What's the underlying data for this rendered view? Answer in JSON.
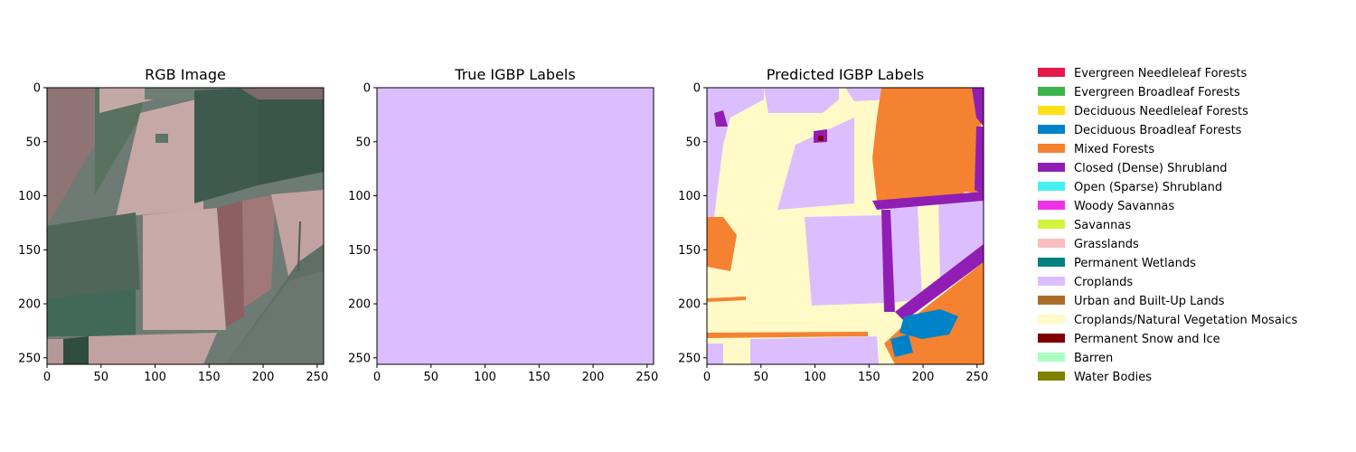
{
  "chart_data": {
    "type": "heatmap",
    "panels": [
      {
        "key": "rgb",
        "title": "RGB Image"
      },
      {
        "key": "true",
        "title": "True IGBP Labels"
      },
      {
        "key": "pred",
        "title": "Predicted IGBP Labels"
      }
    ],
    "x_ticks": [
      "0",
      "50",
      "100",
      "150",
      "200",
      "250"
    ],
    "y_ticks": [
      "0",
      "50",
      "100",
      "150",
      "200",
      "250"
    ],
    "x_range": [
      0,
      256
    ],
    "y_range": [
      0,
      256
    ],
    "true_label_uniform_class": "Croplands",
    "legend": {
      "placement": "right",
      "entries": [
        {
          "label": "Evergreen Needleleaf Forests",
          "color": "#e6194b"
        },
        {
          "label": "Evergreen Broadleaf Forests",
          "color": "#3cb44b"
        },
        {
          "label": "Deciduous Needleleaf Forests",
          "color": "#ffe119"
        },
        {
          "label": "Deciduous Broadleaf Forests",
          "color": "#0082c8"
        },
        {
          "label": "Mixed Forests",
          "color": "#f58231"
        },
        {
          "label": "Closed (Dense) Shrubland",
          "color": "#911eb4"
        },
        {
          "label": "Open (Sparse) Shrubland",
          "color": "#46f0f0"
        },
        {
          "label": "Woody Savannas",
          "color": "#f032e6"
        },
        {
          "label": "Savannas",
          "color": "#d2f53c"
        },
        {
          "label": "Grasslands",
          "color": "#fabebe"
        },
        {
          "label": "Permanent Wetlands",
          "color": "#008080"
        },
        {
          "label": "Croplands",
          "color": "#dcbeff"
        },
        {
          "label": "Urban and Built-Up Lands",
          "color": "#aa6e28"
        },
        {
          "label": "Croplands/Natural Vegetation Mosaics",
          "color": "#fffac8"
        },
        {
          "label": "Permanent Snow and Ice",
          "color": "#800000"
        },
        {
          "label": "Barren",
          "color": "#aaffc3"
        },
        {
          "label": "Water Bodies",
          "color": "#808000"
        }
      ]
    }
  }
}
